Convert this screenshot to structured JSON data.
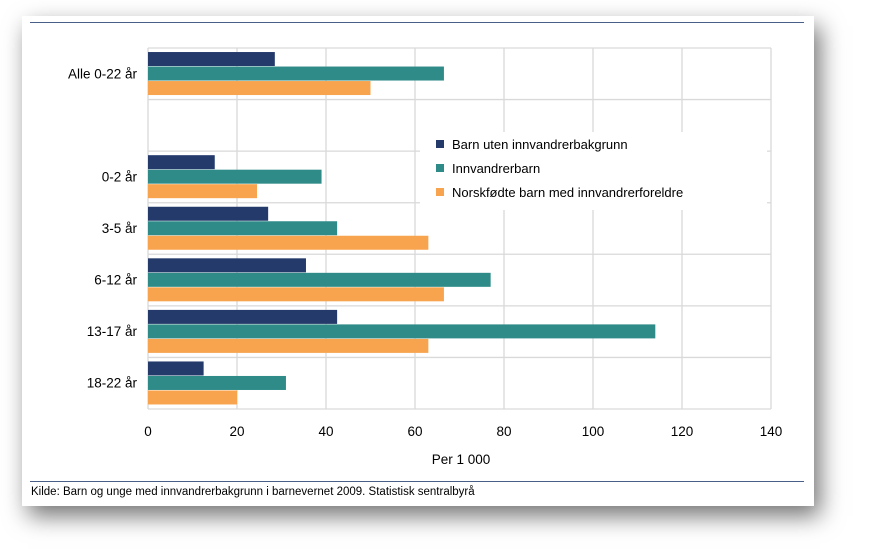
{
  "chart_data": {
    "type": "bar",
    "orientation": "horizontal",
    "categories": [
      "Alle 0-22 år",
      "",
      "0-2 år",
      "3-5 år",
      "6-12 år",
      "13-17 år",
      "18-22 år"
    ],
    "series": [
      {
        "name": "Barn uten innvandrerbakgrunn",
        "color": "#243a6b",
        "values": [
          28.5,
          null,
          15,
          27,
          35.5,
          42.5,
          12.5
        ]
      },
      {
        "name": "Innvandrerbarn",
        "color": "#2e8b88",
        "values": [
          66.5,
          null,
          39,
          42.5,
          77,
          114,
          31
        ]
      },
      {
        "name": "Norskfødte barn med innvandrerforeldre",
        "color": "#f8a44f",
        "values": [
          50,
          null,
          24.5,
          63,
          66.5,
          63,
          20
        ]
      }
    ],
    "xlabel": "Per 1 000",
    "xlim": [
      0,
      140
    ],
    "xticks": [
      0,
      20,
      40,
      60,
      80,
      100,
      120,
      140
    ],
    "grid": true,
    "legend_position": "right"
  },
  "source": "Kilde: Barn og unge med innvandrerbakgrunn i barnevernet 2009. Statistisk sentralbyrå"
}
